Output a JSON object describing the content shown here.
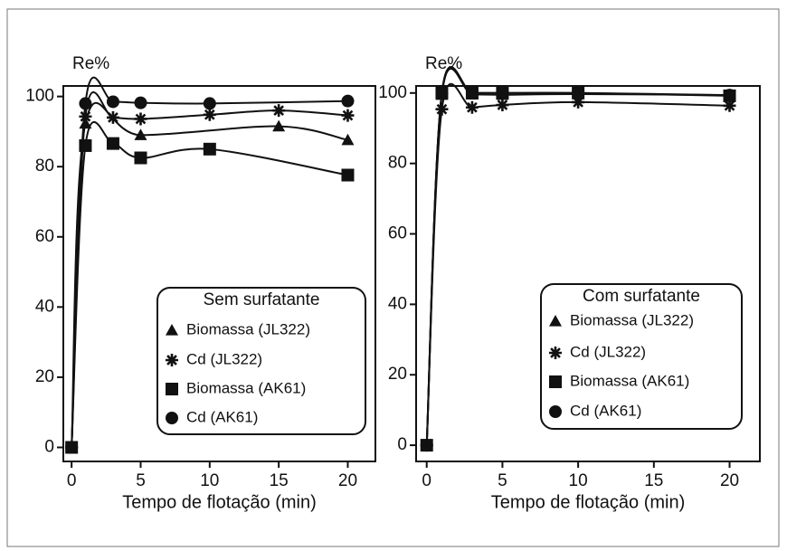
{
  "chart_data": [
    {
      "type": "line",
      "y_label": "Re%",
      "x_label": "Tempo de flotação (min)",
      "xlim": [
        -0.6,
        22
      ],
      "ylim": [
        -4,
        103
      ],
      "xticks": [
        0,
        5,
        10,
        15,
        20
      ],
      "yticks": [
        0,
        20,
        40,
        60,
        80,
        100
      ],
      "legend_title": "Sem surfatante",
      "series": [
        {
          "name": "Biomassa (JL322)",
          "marker": "triangle",
          "color": "#111111",
          "x": [
            0,
            1,
            5,
            15,
            20
          ],
          "values": [
            0,
            92.3,
            89,
            91.5,
            87.6
          ]
        },
        {
          "name": "Cd (JL322)",
          "marker": "star",
          "color": "#111111",
          "x": [
            0,
            1,
            3,
            5,
            10,
            15,
            20
          ],
          "values": [
            0,
            94.3,
            94,
            93.6,
            94.8,
            96,
            94.6
          ]
        },
        {
          "name": "Biomassa (AK61)",
          "marker": "square",
          "color": "#111111",
          "x": [
            0,
            1,
            3,
            5,
            10,
            20
          ],
          "values": [
            0,
            86,
            86.6,
            82.5,
            85,
            77.6
          ]
        },
        {
          "name": "Cd (AK61)",
          "marker": "circle",
          "color": "#111111",
          "x": [
            0,
            1,
            3,
            5,
            10,
            20
          ],
          "values": [
            0,
            98,
            98.5,
            98.2,
            98,
            98.7
          ]
        }
      ]
    },
    {
      "type": "line",
      "y_label": "Re%",
      "x_label": "Tempo de flotação (min)",
      "xlim": [
        -0.7,
        22
      ],
      "ylim": [
        -4.6,
        102
      ],
      "xticks": [
        0,
        5,
        10,
        15,
        20
      ],
      "yticks": [
        0,
        20,
        40,
        60,
        80,
        100
      ],
      "legend_title": "Com surfatante",
      "series": [
        {
          "name": "Biomassa (JL322)",
          "marker": "triangle",
          "color": "#111111",
          "x": [
            0,
            1,
            3,
            5,
            10,
            20
          ],
          "values": [
            0,
            99.5,
            99.6,
            99.5,
            99.7,
            99.4
          ]
        },
        {
          "name": "Cd (JL322)",
          "marker": "star",
          "color": "#111111",
          "x": [
            0,
            1,
            3,
            5,
            10,
            20
          ],
          "values": [
            0,
            95.4,
            95.9,
            96.6,
            97.4,
            96.4
          ]
        },
        {
          "name": "Biomassa (AK61)",
          "marker": "square",
          "color": "#111111",
          "x": [
            0,
            1,
            3,
            5,
            10,
            20
          ],
          "values": [
            0,
            100,
            100,
            100,
            100,
            99.2
          ]
        },
        {
          "name": "Cd (AK61)",
          "marker": "circle",
          "color": "#111111",
          "x": [
            0,
            1,
            3,
            5,
            10,
            20
          ],
          "values": [
            0,
            100,
            100,
            100,
            100,
            99.4
          ]
        }
      ]
    }
  ]
}
